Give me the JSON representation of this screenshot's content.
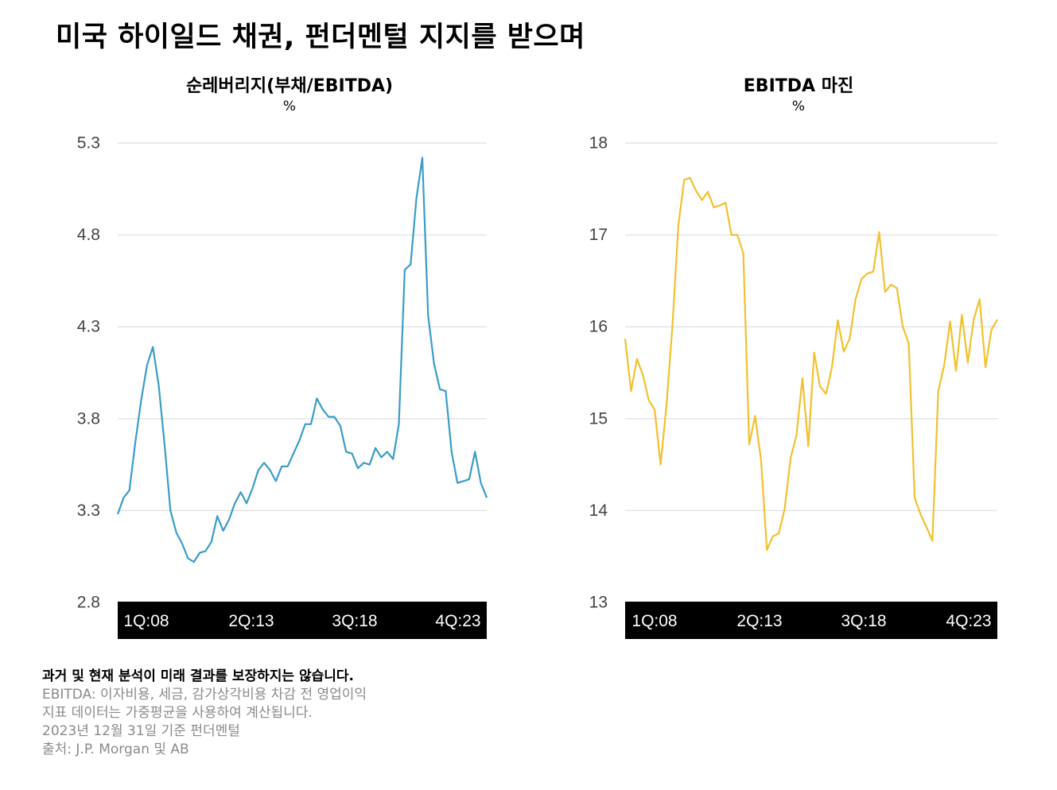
{
  "title": "미국 하이일드 채권, 펀더멘털 지지를 받으며",
  "footnotes": {
    "disclaimer": "과거 및 현재 분석이 미래 결과를 보장하지는 않습니다.",
    "lines": [
      "EBITDA: 이자비용, 세금, 감가상각비용 차감 전 영업이익",
      "지표 데이터는 가중평균을 사용하여 계산됩니다.",
      "2023년 12월 31일 기준 펀더멘털",
      "출처: J.P. Morgan 및 AB"
    ]
  },
  "chart_data": [
    {
      "type": "line",
      "title": "순레버리지(부채/EBITDA)",
      "unit": "%",
      "color": "#3a9cc8",
      "ylim": [
        2.8,
        5.3
      ],
      "yticks": [
        "5.3",
        "4.8",
        "4.3",
        "3.8",
        "3.3",
        "2.8"
      ],
      "grid": true,
      "xtick_labels": [
        "1Q:08",
        "2Q:13",
        "3Q:18",
        "4Q:23"
      ],
      "x_start": "1Q:08",
      "x_end": "4Q:23",
      "values": [
        3.28,
        3.37,
        3.41,
        3.67,
        3.9,
        4.09,
        4.19,
        3.98,
        3.66,
        3.3,
        3.18,
        3.12,
        3.04,
        3.02,
        3.07,
        3.08,
        3.13,
        3.27,
        3.19,
        3.25,
        3.34,
        3.4,
        3.34,
        3.42,
        3.52,
        3.56,
        3.52,
        3.46,
        3.54,
        3.54,
        3.61,
        3.68,
        3.77,
        3.77,
        3.91,
        3.85,
        3.81,
        3.81,
        3.76,
        3.62,
        3.61,
        3.53,
        3.56,
        3.55,
        3.64,
        3.59,
        3.62,
        3.58,
        3.77,
        4.61,
        4.64,
        5.0,
        5.22,
        4.36,
        4.1,
        3.96,
        3.95,
        3.62,
        3.45,
        3.46,
        3.47,
        3.62,
        3.45,
        3.37
      ]
    },
    {
      "type": "line",
      "title": "EBITDA 마진",
      "unit": "%",
      "color": "#f2c12e",
      "ylim": [
        13,
        18
      ],
      "yticks": [
        "18",
        "17",
        "16",
        "15",
        "14",
        "13"
      ],
      "grid": true,
      "xtick_labels": [
        "1Q:08",
        "2Q:13",
        "3Q:18",
        "4Q:23"
      ],
      "x_start": "1Q:08",
      "x_end": "4Q:23",
      "values": [
        15.87,
        15.3,
        15.65,
        15.48,
        15.2,
        15.1,
        14.5,
        15.15,
        16.0,
        17.1,
        17.6,
        17.62,
        17.48,
        17.38,
        17.47,
        17.3,
        17.32,
        17.35,
        17.0,
        17.0,
        16.8,
        14.72,
        15.03,
        14.55,
        13.57,
        13.72,
        13.75,
        14.02,
        14.57,
        14.82,
        15.44,
        14.7,
        15.72,
        15.35,
        15.27,
        15.56,
        16.07,
        15.73,
        15.87,
        16.3,
        16.52,
        16.58,
        16.6,
        17.03,
        16.38,
        16.46,
        16.42,
        16.0,
        15.82,
        14.14,
        13.96,
        13.82,
        13.67,
        15.3,
        15.58,
        16.06,
        15.52,
        16.13,
        15.61,
        16.08,
        16.3,
        15.56,
        15.97,
        16.08
      ]
    }
  ]
}
